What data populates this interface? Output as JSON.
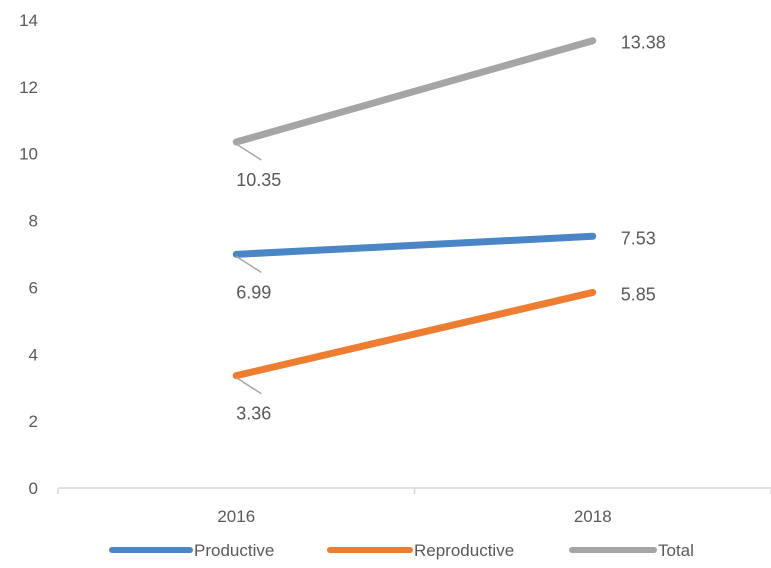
{
  "chart_data": {
    "type": "line",
    "title": "",
    "xlabel": "",
    "ylabel": "",
    "categories": [
      "2016",
      "2018"
    ],
    "ylim": [
      0,
      14
    ],
    "yticks": [
      "0",
      "2",
      "4",
      "6",
      "8",
      "10",
      "12",
      "14"
    ],
    "grid": false,
    "legend_position": "bottom",
    "series": [
      {
        "name": "Productive",
        "color": "#4a86c5",
        "values": [
          6.99,
          7.53
        ],
        "labels": [
          "6.99",
          "7.53"
        ]
      },
      {
        "name": "Reproductive",
        "color": "#ed7d31",
        "values": [
          3.36,
          5.85
        ],
        "labels": [
          "3.36",
          "5.85"
        ]
      },
      {
        "name": "Total",
        "color": "#a5a5a5",
        "values": [
          10.35,
          13.38
        ],
        "labels": [
          "10.35",
          "13.38"
        ]
      }
    ]
  }
}
